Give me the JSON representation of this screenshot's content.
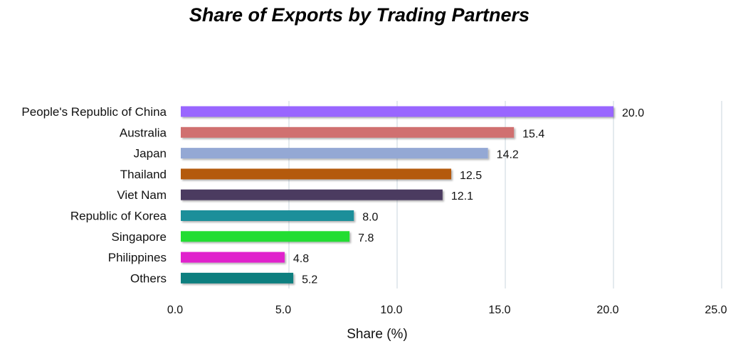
{
  "chart_data": {
    "type": "bar",
    "orientation": "horizontal",
    "title": "Share of Exports by Trading Partners",
    "xlabel": "Share (%)",
    "ylabel": "",
    "xlim": [
      0,
      25
    ],
    "x_ticks": [
      "0.0",
      "5.0",
      "10.0",
      "15.0",
      "20.0",
      "25.0"
    ],
    "grid": "vertical",
    "legend": "none",
    "categories": [
      "People's Republic of China",
      "Australia",
      "Japan",
      "Thailand",
      "Viet Nam",
      "Republic of Korea",
      "Singapore",
      "Philippines",
      "Others"
    ],
    "values": [
      20.0,
      15.4,
      14.2,
      12.5,
      12.1,
      8.0,
      7.8,
      4.8,
      5.2
    ],
    "value_labels": [
      "20.0",
      "15.4",
      "14.2",
      "12.5",
      "12.1",
      "8.0",
      "7.8",
      "4.8",
      "5.2"
    ],
    "colors": [
      "#9966ff",
      "#d07070",
      "#94a8d4",
      "#b45a10",
      "#4b3a60",
      "#1e8f9a",
      "#22dd33",
      "#e022cc",
      "#0a7f7f"
    ]
  }
}
